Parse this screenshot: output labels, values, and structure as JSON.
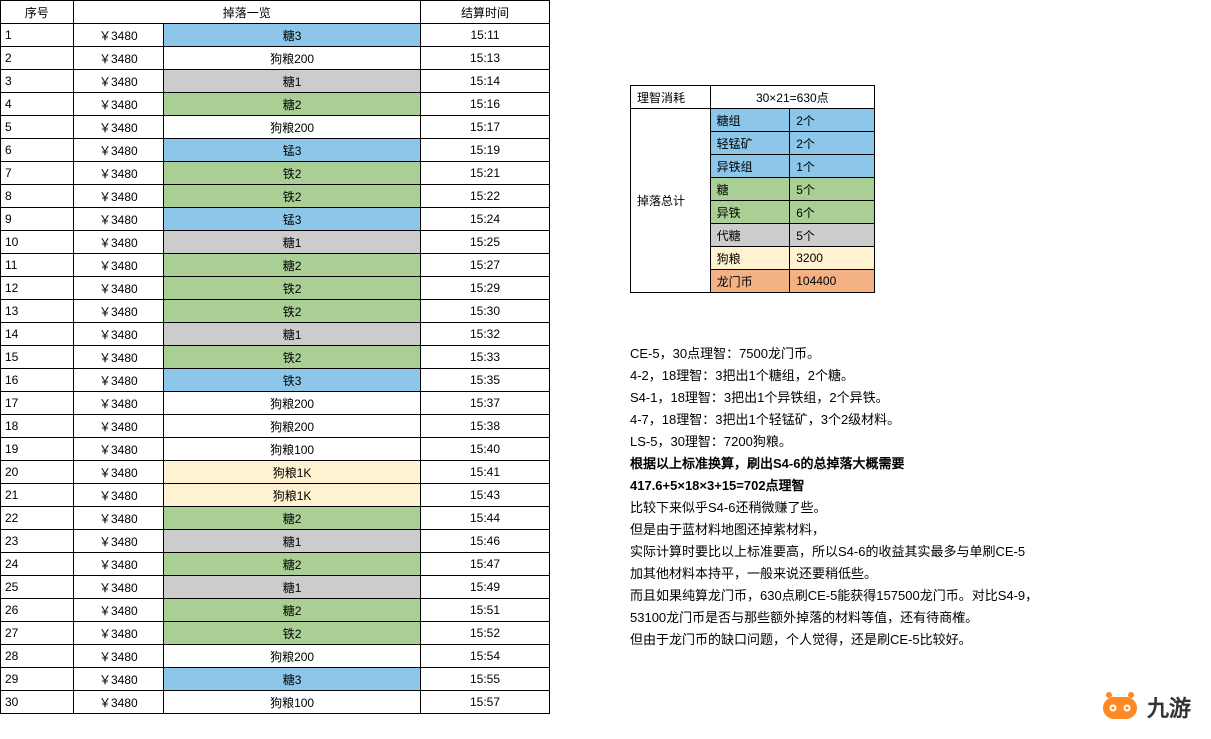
{
  "colors": {
    "blue": "#8cc6e8",
    "green": "#a9cf94",
    "gray": "#cccccc",
    "cream": "#fff2d0",
    "orange": "#f4b183",
    "white": "#ffffff"
  },
  "mainTable": {
    "headers": {
      "idx": "序号",
      "drops": "掉落一览",
      "time": "结算时间"
    },
    "rows": [
      {
        "idx": "1",
        "money": "￥3480",
        "item": "糖3",
        "color": "blue",
        "time": "15:11"
      },
      {
        "idx": "2",
        "money": "￥3480",
        "item": "狗粮200",
        "color": "white",
        "time": "15:13"
      },
      {
        "idx": "3",
        "money": "￥3480",
        "item": "糖1",
        "color": "gray",
        "time": "15:14"
      },
      {
        "idx": "4",
        "money": "￥3480",
        "item": "糖2",
        "color": "green",
        "time": "15:16"
      },
      {
        "idx": "5",
        "money": "￥3480",
        "item": "狗粮200",
        "color": "white",
        "time": "15:17"
      },
      {
        "idx": "6",
        "money": "￥3480",
        "item": "锰3",
        "color": "blue",
        "time": "15:19"
      },
      {
        "idx": "7",
        "money": "￥3480",
        "item": "铁2",
        "color": "green",
        "time": "15:21"
      },
      {
        "idx": "8",
        "money": "￥3480",
        "item": "铁2",
        "color": "green",
        "time": "15:22"
      },
      {
        "idx": "9",
        "money": "￥3480",
        "item": "锰3",
        "color": "blue",
        "time": "15:24"
      },
      {
        "idx": "10",
        "money": "￥3480",
        "item": "糖1",
        "color": "gray",
        "time": "15:25"
      },
      {
        "idx": "11",
        "money": "￥3480",
        "item": "糖2",
        "color": "green",
        "time": "15:27"
      },
      {
        "idx": "12",
        "money": "￥3480",
        "item": "铁2",
        "color": "green",
        "time": "15:29"
      },
      {
        "idx": "13",
        "money": "￥3480",
        "item": "铁2",
        "color": "green",
        "time": "15:30"
      },
      {
        "idx": "14",
        "money": "￥3480",
        "item": "糖1",
        "color": "gray",
        "time": "15:32"
      },
      {
        "idx": "15",
        "money": "￥3480",
        "item": "铁2",
        "color": "green",
        "time": "15:33"
      },
      {
        "idx": "16",
        "money": "￥3480",
        "item": "铁3",
        "color": "blue",
        "time": "15:35"
      },
      {
        "idx": "17",
        "money": "￥3480",
        "item": "狗粮200",
        "color": "white",
        "time": "15:37"
      },
      {
        "idx": "18",
        "money": "￥3480",
        "item": "狗粮200",
        "color": "white",
        "time": "15:38"
      },
      {
        "idx": "19",
        "money": "￥3480",
        "item": "狗粮100",
        "color": "white",
        "time": "15:40"
      },
      {
        "idx": "20",
        "money": "￥3480",
        "item": "狗粮1K",
        "color": "cream",
        "time": "15:41"
      },
      {
        "idx": "21",
        "money": "￥3480",
        "item": "狗粮1K",
        "color": "cream",
        "time": "15:43"
      },
      {
        "idx": "22",
        "money": "￥3480",
        "item": "糖2",
        "color": "green",
        "time": "15:44"
      },
      {
        "idx": "23",
        "money": "￥3480",
        "item": "糖1",
        "color": "gray",
        "time": "15:46"
      },
      {
        "idx": "24",
        "money": "￥3480",
        "item": "糖2",
        "color": "green",
        "time": "15:47"
      },
      {
        "idx": "25",
        "money": "￥3480",
        "item": "糖1",
        "color": "gray",
        "time": "15:49"
      },
      {
        "idx": "26",
        "money": "￥3480",
        "item": "糖2",
        "color": "green",
        "time": "15:51"
      },
      {
        "idx": "27",
        "money": "￥3480",
        "item": "铁2",
        "color": "green",
        "time": "15:52"
      },
      {
        "idx": "28",
        "money": "￥3480",
        "item": "狗粮200",
        "color": "white",
        "time": "15:54"
      },
      {
        "idx": "29",
        "money": "￥3480",
        "item": "糖3",
        "color": "blue",
        "time": "15:55"
      },
      {
        "idx": "30",
        "money": "￥3480",
        "item": "狗粮100",
        "color": "white",
        "time": "15:57"
      }
    ]
  },
  "summaryTable": {
    "header": {
      "label": "理智消耗",
      "value": "30×21=630点"
    },
    "groupLabel": "掉落总计",
    "rows": [
      {
        "name": "糖组",
        "val": "2个",
        "color": "blue"
      },
      {
        "name": "轻锰矿",
        "val": "2个",
        "color": "blue"
      },
      {
        "name": "异铁组",
        "val": "1个",
        "color": "blue"
      },
      {
        "name": "糖",
        "val": "5个",
        "color": "green"
      },
      {
        "name": "异铁",
        "val": "6个",
        "color": "green"
      },
      {
        "name": "代糖",
        "val": "5个",
        "color": "gray"
      },
      {
        "name": "狗粮",
        "val": "3200",
        "color": "cream"
      },
      {
        "name": "龙门币",
        "val": "104400",
        "color": "orange"
      }
    ]
  },
  "notes": [
    {
      "text": "CE-5，30点理智：7500龙门币。",
      "bold": false
    },
    {
      "text": "4-2，18理智：3把出1个糖组，2个糖。",
      "bold": false
    },
    {
      "text": "S4-1，18理智：3把出1个异铁组，2个异铁。",
      "bold": false
    },
    {
      "text": "4-7，18理智：3把出1个轻锰矿，3个2级材料。",
      "bold": false
    },
    {
      "text": "LS-5，30理智：7200狗粮。",
      "bold": false
    },
    {
      "text": "根据以上标准换算，刷出S4-6的总掉落大概需要",
      "bold": true
    },
    {
      "text": "417.6+5×18×3+15=702点理智",
      "bold": true
    },
    {
      "text": "比较下来似乎S4-6还稍微赚了些。",
      "bold": false
    },
    {
      "text": "但是由于蓝材料地图还掉紫材料，",
      "bold": false
    },
    {
      "text": "实际计算时要比以上标准要高，所以S4-6的收益其实最多与单刷CE-5",
      "bold": false
    },
    {
      "text": "加其他材料本持平，一般来说还要稍低些。",
      "bold": false
    },
    {
      "text": "而且如果纯算龙门币，630点刷CE-5能获得157500龙门币。对比S4-9，",
      "bold": false
    },
    {
      "text": "53100龙门币是否与那些额外掉落的材料等值，还有待商榷。",
      "bold": false
    },
    {
      "text": "但由于龙门币的缺口问题，个人觉得，还是刷CE-5比较好。",
      "bold": false
    }
  ],
  "logo": {
    "text": "九游",
    "color": "#ff8822"
  }
}
